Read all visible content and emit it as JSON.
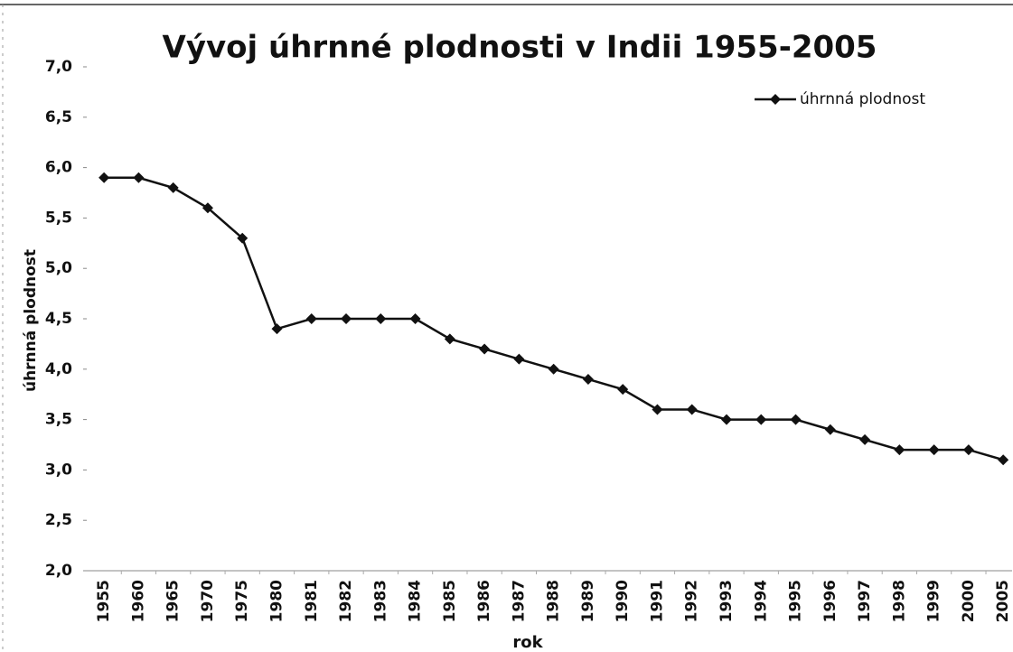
{
  "chart_data": {
    "type": "line",
    "title": "Vývoj úhrnné plodnosti v Indii 1955-2005",
    "x_label": "rok",
    "y_label": "úhrnná plodnost",
    "categories": [
      "1955",
      "1960",
      "1965",
      "1970",
      "1975",
      "1980",
      "1981",
      "1982",
      "1983",
      "1984",
      "1985",
      "1986",
      "1987",
      "1988",
      "1989",
      "1990",
      "1991",
      "1992",
      "1993",
      "1994",
      "1995",
      "1996",
      "1997",
      "1998",
      "1999",
      "2000",
      "2005"
    ],
    "series": [
      {
        "name": "úhrnná plodnost",
        "color": "#111111",
        "values": [
          5.9,
          5.9,
          5.8,
          5.6,
          5.3,
          4.4,
          4.5,
          4.5,
          4.5,
          4.5,
          4.3,
          4.2,
          4.1,
          4.0,
          3.9,
          3.8,
          3.6,
          3.6,
          3.5,
          3.5,
          3.5,
          3.4,
          3.3,
          3.2,
          3.2,
          3.2,
          3.1
        ]
      }
    ],
    "ylim": [
      2,
      7
    ],
    "yticks": [
      {
        "value": 2,
        "label": "2,0"
      },
      {
        "value": 2.5,
        "label": "2,5"
      },
      {
        "value": 3,
        "label": "3,0"
      },
      {
        "value": 3.5,
        "label": "3,5"
      },
      {
        "value": 4,
        "label": "4,0"
      },
      {
        "value": 4.5,
        "label": "4,5"
      },
      {
        "value": 5,
        "label": "5,0"
      },
      {
        "value": 5.5,
        "label": "5,5"
      },
      {
        "value": 6,
        "label": "6,0"
      },
      {
        "value": 6.5,
        "label": "6,5"
      },
      {
        "value": 7,
        "label": "7,0"
      }
    ],
    "legend": "top-right",
    "grid": false
  }
}
